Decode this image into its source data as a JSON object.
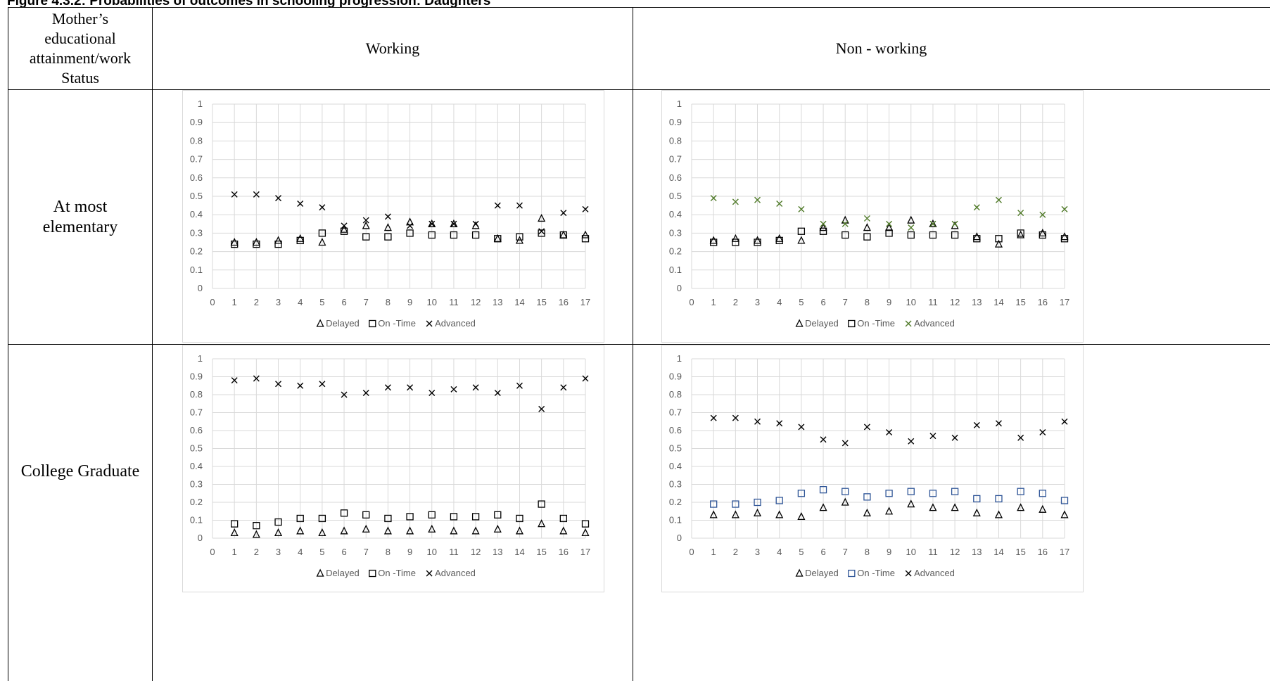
{
  "figure_title": "Figure 4.3.2: Probabilities of outcomes in schooling progression: Daughters",
  "table": {
    "header_row_label": "Mother's educational attainment/work Status",
    "header_row_label_lines": [
      "Mother’s",
      "educational",
      "attainment/work",
      "Status"
    ],
    "col_working": "Working",
    "col_nonworking": "Non - working",
    "row_elementary_lines": [
      "At most",
      "elementary"
    ],
    "row_college": "College Graduate"
  },
  "colors": {
    "mark_black": "#000000",
    "mark_green": "#4f7a28",
    "mark_blue": "#2f5597",
    "grid": "#d9d9d9",
    "tick_text": "#595959"
  },
  "chart_data": [
    {
      "id": "elem-working",
      "type": "scatter",
      "x": [
        1,
        2,
        3,
        4,
        5,
        6,
        7,
        8,
        9,
        10,
        11,
        12,
        13,
        14,
        15,
        16,
        17
      ],
      "xlim": [
        0,
        17
      ],
      "ylim": [
        0,
        1
      ],
      "x_ticks": [
        "0",
        "1",
        "2",
        "3",
        "4",
        "5",
        "6",
        "7",
        "8",
        "9",
        "10",
        "11",
        "12",
        "13",
        "14",
        "15",
        "16",
        "17"
      ],
      "y_ticks": [
        "0",
        "0.1",
        "0.2",
        "0.3",
        "0.4",
        "0.5",
        "0.6",
        "0.7",
        "0.8",
        "0.9",
        "1"
      ],
      "grid": true,
      "legend_position": "bottom",
      "series": [
        {
          "name": "Delayed",
          "marker": "triangle",
          "color": "#000000",
          "values": [
            0.25,
            0.25,
            0.26,
            0.27,
            0.25,
            0.32,
            0.34,
            0.33,
            0.36,
            0.35,
            0.35,
            0.34,
            0.27,
            0.26,
            0.38,
            0.29,
            0.29
          ]
        },
        {
          "name": "On -Time",
          "marker": "square",
          "color": "#000000",
          "values": [
            0.24,
            0.24,
            0.24,
            0.26,
            0.3,
            0.31,
            0.28,
            0.28,
            0.3,
            0.29,
            0.29,
            0.29,
            0.27,
            0.28,
            0.3,
            0.29,
            0.27
          ]
        },
        {
          "name": "Advanced",
          "marker": "cross",
          "color": "#000000",
          "values": [
            0.51,
            0.51,
            0.49,
            0.46,
            0.44,
            0.34,
            0.37,
            0.39,
            0.34,
            0.35,
            0.35,
            0.35,
            0.45,
            0.45,
            0.31,
            0.41,
            0.43
          ]
        }
      ]
    },
    {
      "id": "elem-nonworking",
      "type": "scatter",
      "x": [
        1,
        2,
        3,
        4,
        5,
        6,
        7,
        8,
        9,
        10,
        11,
        12,
        13,
        14,
        15,
        16,
        17
      ],
      "xlim": [
        0,
        17
      ],
      "ylim": [
        0,
        1
      ],
      "x_ticks": [
        "0",
        "1",
        "2",
        "3",
        "4",
        "5",
        "6",
        "7",
        "8",
        "9",
        "10",
        "11",
        "12",
        "13",
        "14",
        "15",
        "16",
        "17"
      ],
      "y_ticks": [
        "0",
        "0.1",
        "0.2",
        "0.3",
        "0.4",
        "0.5",
        "0.6",
        "0.7",
        "0.8",
        "0.9",
        "1"
      ],
      "grid": true,
      "legend_position": "bottom",
      "series": [
        {
          "name": "Delayed",
          "marker": "triangle",
          "color": "#000000",
          "values": [
            0.26,
            0.27,
            0.26,
            0.27,
            0.26,
            0.33,
            0.37,
            0.33,
            0.33,
            0.37,
            0.35,
            0.34,
            0.28,
            0.24,
            0.29,
            0.3,
            0.28
          ]
        },
        {
          "name": "On -Time",
          "marker": "square",
          "color": "#000000",
          "values": [
            0.25,
            0.25,
            0.25,
            0.26,
            0.31,
            0.31,
            0.29,
            0.28,
            0.3,
            0.29,
            0.29,
            0.29,
            0.27,
            0.27,
            0.3,
            0.29,
            0.27
          ]
        },
        {
          "name": "Advanced",
          "marker": "cross",
          "color": "#4f7a28",
          "values": [
            0.49,
            0.47,
            0.48,
            0.46,
            0.43,
            0.35,
            0.35,
            0.38,
            0.35,
            0.33,
            0.35,
            0.35,
            0.44,
            0.48,
            0.41,
            0.4,
            0.43
          ]
        }
      ]
    },
    {
      "id": "college-working",
      "type": "scatter",
      "x": [
        1,
        2,
        3,
        4,
        5,
        6,
        7,
        8,
        9,
        10,
        11,
        12,
        13,
        14,
        15,
        16,
        17
      ],
      "xlim": [
        0,
        17
      ],
      "ylim": [
        0,
        1
      ],
      "x_ticks": [
        "0",
        "1",
        "2",
        "3",
        "4",
        "5",
        "6",
        "7",
        "8",
        "9",
        "10",
        "11",
        "12",
        "13",
        "14",
        "15",
        "16",
        "17"
      ],
      "y_ticks": [
        "0",
        "0.1",
        "0.2",
        "0.3",
        "0.4",
        "0.5",
        "0.6",
        "0.7",
        "0.8",
        "0.9",
        "1"
      ],
      "grid": true,
      "legend_position": "bottom",
      "series": [
        {
          "name": "Delayed",
          "marker": "triangle",
          "color": "#000000",
          "values": [
            0.03,
            0.02,
            0.03,
            0.04,
            0.03,
            0.04,
            0.05,
            0.04,
            0.04,
            0.05,
            0.04,
            0.04,
            0.05,
            0.04,
            0.08,
            0.04,
            0.03
          ]
        },
        {
          "name": "On -Time",
          "marker": "square",
          "color": "#000000",
          "values": [
            0.08,
            0.07,
            0.09,
            0.11,
            0.11,
            0.14,
            0.13,
            0.11,
            0.12,
            0.13,
            0.12,
            0.12,
            0.13,
            0.11,
            0.19,
            0.11,
            0.08
          ]
        },
        {
          "name": "Advanced",
          "marker": "cross",
          "color": "#000000",
          "values": [
            0.88,
            0.89,
            0.86,
            0.85,
            0.86,
            0.8,
            0.81,
            0.84,
            0.84,
            0.81,
            0.83,
            0.84,
            0.81,
            0.85,
            0.72,
            0.84,
            0.89
          ]
        }
      ]
    },
    {
      "id": "college-nonworking",
      "type": "scatter",
      "x": [
        1,
        2,
        3,
        4,
        5,
        6,
        7,
        8,
        9,
        10,
        11,
        12,
        13,
        14,
        15,
        16,
        17
      ],
      "xlim": [
        0,
        17
      ],
      "ylim": [
        0,
        1
      ],
      "x_ticks": [
        "0",
        "1",
        "2",
        "3",
        "4",
        "5",
        "6",
        "7",
        "8",
        "9",
        "10",
        "11",
        "12",
        "13",
        "14",
        "15",
        "16",
        "17"
      ],
      "y_ticks": [
        "0",
        "0.1",
        "0.2",
        "0.3",
        "0.4",
        "0.5",
        "0.6",
        "0.7",
        "0.8",
        "0.9",
        "1"
      ],
      "grid": true,
      "legend_position": "bottom",
      "series": [
        {
          "name": "Delayed",
          "marker": "triangle",
          "color": "#000000",
          "values": [
            0.13,
            0.13,
            0.14,
            0.13,
            0.12,
            0.17,
            0.2,
            0.14,
            0.15,
            0.19,
            0.17,
            0.17,
            0.14,
            0.13,
            0.17,
            0.16,
            0.13
          ]
        },
        {
          "name": "On -Time",
          "marker": "square",
          "color": "#2f5597",
          "values": [
            0.19,
            0.19,
            0.2,
            0.21,
            0.25,
            0.27,
            0.26,
            0.23,
            0.25,
            0.26,
            0.25,
            0.26,
            0.22,
            0.22,
            0.26,
            0.25,
            0.21
          ]
        },
        {
          "name": "Advanced",
          "marker": "cross",
          "color": "#000000",
          "values": [
            0.67,
            0.67,
            0.65,
            0.64,
            0.62,
            0.55,
            0.53,
            0.62,
            0.59,
            0.54,
            0.57,
            0.56,
            0.63,
            0.64,
            0.56,
            0.59,
            0.65
          ]
        }
      ]
    }
  ]
}
